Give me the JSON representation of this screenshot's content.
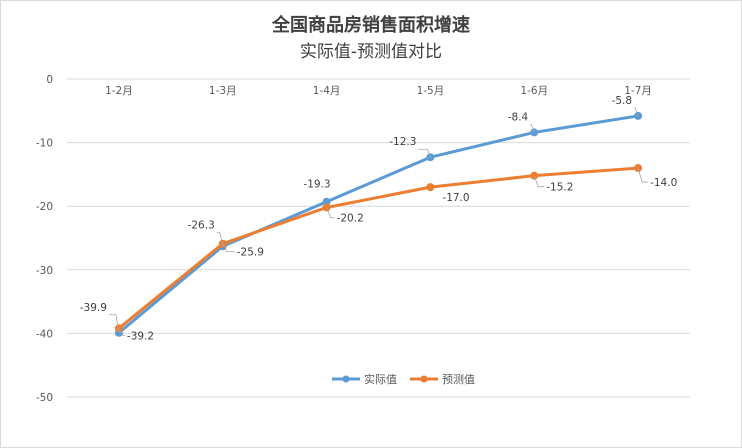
{
  "chart_data": {
    "type": "line",
    "title": "全国商品房销售面积增速",
    "subtitle": "实际值-预测值对比",
    "categories": [
      "1-2月",
      "1-3月",
      "1-4月",
      "1-5月",
      "1-6月",
      "1-7月"
    ],
    "series": [
      {
        "name": "实际值",
        "color": "#5b9bd5",
        "values": [
          -39.9,
          -26.3,
          -19.3,
          -12.3,
          -8.4,
          -5.8
        ]
      },
      {
        "name": "预测值",
        "color": "#ed7d31",
        "values": [
          -39.2,
          -25.9,
          -20.2,
          -17.0,
          -15.2,
          -14.0
        ]
      }
    ],
    "ylim": [
      -50,
      0
    ],
    "yticks": [
      0,
      -10,
      -20,
      -30,
      -40,
      -50
    ],
    "grid": true,
    "legend": "bottom"
  }
}
